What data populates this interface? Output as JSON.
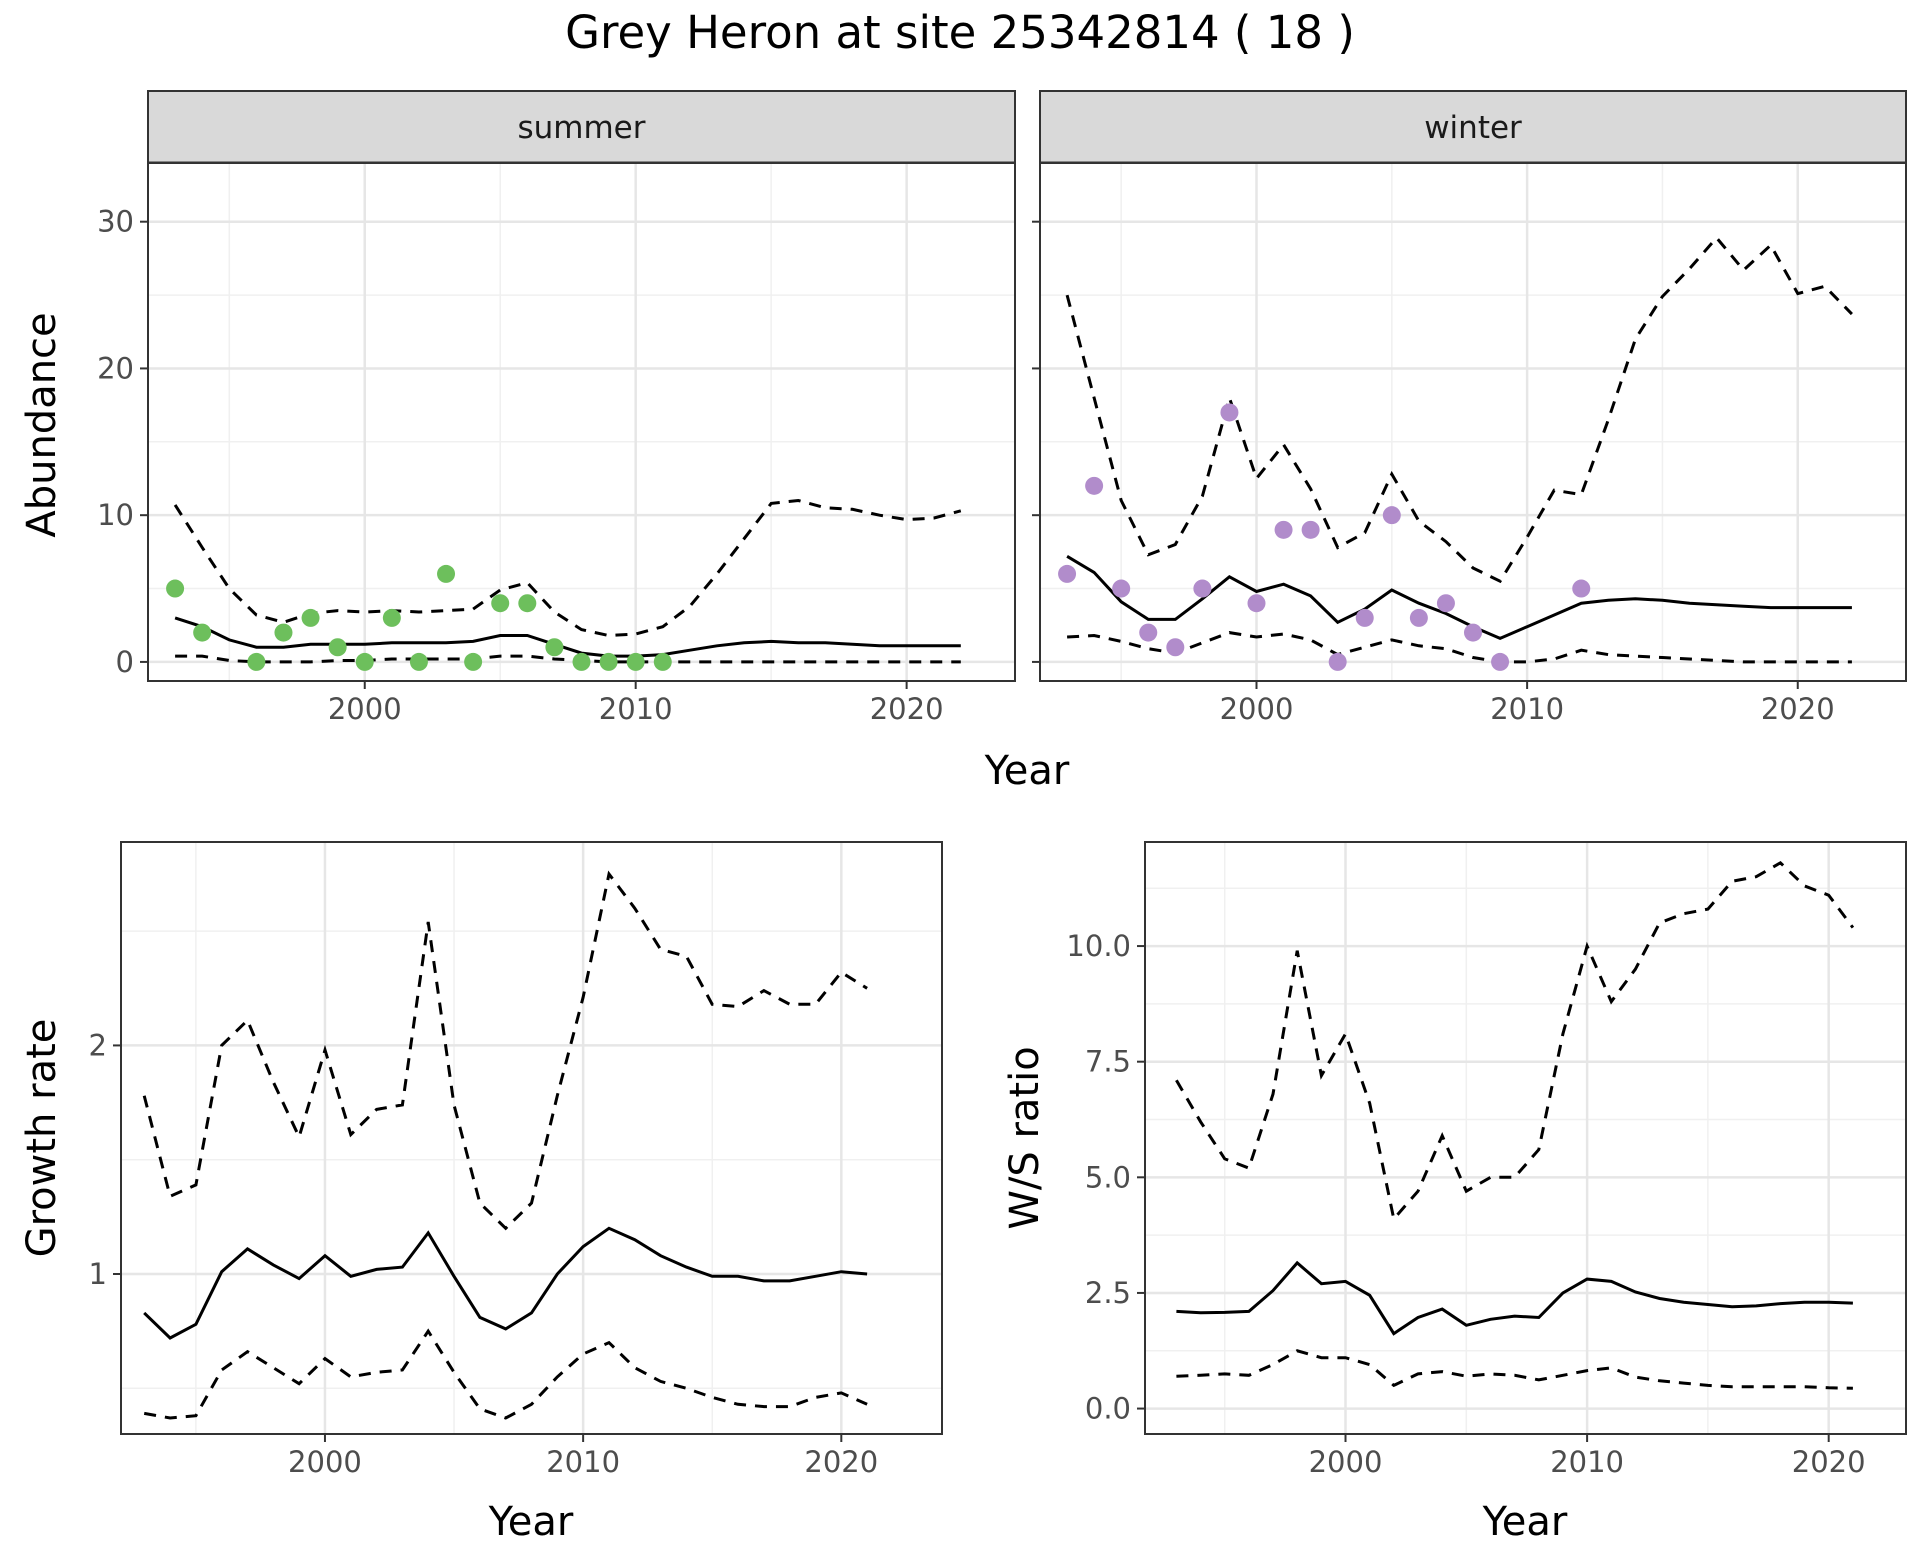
{
  "title": "Grey Heron at site 25342814 ( 18 )",
  "top": {
    "ylabel": "Abundance",
    "xlabel": "Year",
    "xlim": [
      1992,
      2024
    ],
    "ylim": [
      -1.3,
      34
    ],
    "yticks": [
      0,
      10,
      20,
      30
    ],
    "xticks": [
      2000,
      2010,
      2020
    ]
  },
  "bottom_left": {
    "ylabel": "Growth rate",
    "xlabel": "Year",
    "xlim": [
      1992.1,
      2023.9
    ],
    "ylim": [
      0.3,
      2.89
    ],
    "yticks": [
      1,
      2
    ],
    "xticks": [
      2000,
      2010,
      2020
    ]
  },
  "bottom_right": {
    "ylabel": "W/S ratio",
    "xlabel": "Year",
    "xlim": [
      1991.7,
      2023.2
    ],
    "ylim": [
      -0.55,
      12.25
    ],
    "yticks": [
      0.0,
      2.5,
      5.0,
      7.5,
      10.0
    ],
    "ytick_labels": [
      "0.0",
      "2.5",
      "5.0",
      "7.5",
      "10.0"
    ],
    "xticks": [
      2000,
      2010,
      2020
    ]
  },
  "colors": {
    "summer_points": "#6dbf5c",
    "winter_points": "#b18ccb",
    "strip_fill": "#d9d9d9",
    "line": "#000000"
  },
  "chart_data": [
    {
      "type": "line",
      "panel": "summer",
      "strip_label": "summer",
      "x": [
        1993,
        1994,
        1995,
        1996,
        1997,
        1998,
        1999,
        2000,
        2001,
        2002,
        2003,
        2004,
        2005,
        2006,
        2007,
        2008,
        2009,
        2010,
        2011,
        2012,
        2013,
        2014,
        2015,
        2016,
        2017,
        2018,
        2019,
        2020,
        2021,
        2022
      ],
      "series": [
        {
          "role": "upper",
          "style": "dashed",
          "values": [
            10.7,
            7.8,
            5.0,
            3.2,
            2.7,
            3.3,
            3.5,
            3.4,
            3.5,
            3.4,
            3.5,
            3.6,
            4.9,
            5.4,
            3.4,
            2.2,
            1.8,
            1.9,
            2.4,
            3.8,
            6.0,
            8.4,
            10.8,
            11.0,
            10.5,
            10.4,
            10.0,
            9.7,
            9.8,
            10.3
          ]
        },
        {
          "role": "estimate",
          "style": "solid",
          "values": [
            3.0,
            2.4,
            1.5,
            1.0,
            1.0,
            1.2,
            1.2,
            1.2,
            1.3,
            1.3,
            1.3,
            1.4,
            1.8,
            1.8,
            1.2,
            0.6,
            0.4,
            0.4,
            0.5,
            0.8,
            1.1,
            1.3,
            1.4,
            1.3,
            1.3,
            1.2,
            1.1,
            1.1,
            1.1,
            1.1
          ]
        },
        {
          "role": "lower",
          "style": "dashed",
          "values": [
            0.4,
            0.4,
            0.1,
            0.0,
            0.0,
            0.0,
            0.1,
            0.1,
            0.2,
            0.2,
            0.2,
            0.2,
            0.4,
            0.4,
            0.2,
            0.1,
            0.0,
            0.0,
            0.0,
            0.0,
            0.0,
            0.0,
            0.0,
            0.0,
            0.0,
            0.0,
            0.0,
            0.0,
            0.0,
            0.0
          ]
        }
      ],
      "points": {
        "x": [
          1993,
          1994,
          1996,
          1997,
          1998,
          1999,
          2000,
          2001,
          2002,
          2003,
          2004,
          2005,
          2006,
          2007,
          2008,
          2009,
          2010,
          2011
        ],
        "y": [
          5,
          2,
          0,
          2,
          3,
          1,
          0,
          3,
          0,
          6,
          0,
          4,
          4,
          1,
          0,
          0,
          0,
          0
        ]
      }
    },
    {
      "type": "line",
      "panel": "winter",
      "strip_label": "winter",
      "x": [
        1993,
        1994,
        1995,
        1996,
        1997,
        1998,
        1999,
        2000,
        2001,
        2002,
        2003,
        2004,
        2005,
        2006,
        2007,
        2008,
        2009,
        2010,
        2011,
        2012,
        2013,
        2014,
        2015,
        2016,
        2017,
        2018,
        2019,
        2020,
        2021,
        2022
      ],
      "series": [
        {
          "role": "upper",
          "style": "dashed",
          "values": [
            25.0,
            18.0,
            11.0,
            7.3,
            8.0,
            11.3,
            18.0,
            12.5,
            14.8,
            11.8,
            7.8,
            8.8,
            12.8,
            9.6,
            8.2,
            6.4,
            5.5,
            8.5,
            11.7,
            11.4,
            16.5,
            22.0,
            24.9,
            26.8,
            28.9,
            26.7,
            28.4,
            25.1,
            25.6,
            23.7
          ]
        },
        {
          "role": "estimate",
          "style": "solid",
          "values": [
            7.2,
            6.1,
            4.1,
            2.9,
            2.9,
            4.3,
            5.8,
            4.8,
            5.3,
            4.5,
            2.7,
            3.6,
            4.9,
            4.0,
            3.3,
            2.4,
            1.6,
            2.4,
            3.2,
            4.0,
            4.2,
            4.3,
            4.2,
            4.0,
            3.9,
            3.8,
            3.7,
            3.7,
            3.7,
            3.7
          ]
        },
        {
          "role": "lower",
          "style": "dashed",
          "values": [
            1.7,
            1.8,
            1.4,
            0.9,
            0.6,
            1.3,
            2.0,
            1.7,
            1.9,
            1.5,
            0.5,
            1.0,
            1.5,
            1.1,
            0.9,
            0.3,
            0.0,
            0.0,
            0.2,
            0.8,
            0.5,
            0.4,
            0.3,
            0.2,
            0.1,
            0.0,
            0.0,
            0.0,
            0.0,
            0.0
          ]
        }
      ],
      "points": {
        "x": [
          1993,
          1994,
          1995,
          1996,
          1997,
          1998,
          1999,
          2000,
          2001,
          2002,
          2003,
          2004,
          2005,
          2006,
          2007,
          2008,
          2009,
          2012
        ],
        "y": [
          6,
          12,
          5,
          2,
          1,
          5,
          17,
          4,
          9,
          9,
          0,
          3,
          10,
          3,
          4,
          2,
          0,
          5
        ]
      }
    },
    {
      "type": "line",
      "panel": "growth_rate",
      "x": [
        1993,
        1994,
        1995,
        1996,
        1997,
        1998,
        1999,
        2000,
        2001,
        2002,
        2003,
        2004,
        2005,
        2006,
        2007,
        2008,
        2009,
        2010,
        2011,
        2012,
        2013,
        2014,
        2015,
        2016,
        2017,
        2018,
        2019,
        2020,
        2021
      ],
      "series": [
        {
          "role": "upper",
          "style": "dashed",
          "values": [
            1.78,
            1.34,
            1.39,
            2.0,
            2.11,
            1.84,
            1.6,
            1.98,
            1.61,
            1.72,
            1.74,
            2.54,
            1.74,
            1.31,
            1.2,
            1.31,
            1.78,
            2.21,
            2.75,
            2.6,
            2.42,
            2.39,
            2.18,
            2.17,
            2.24,
            2.18,
            2.18,
            2.32,
            2.25
          ]
        },
        {
          "role": "estimate",
          "style": "solid",
          "values": [
            0.83,
            0.72,
            0.78,
            1.01,
            1.11,
            1.04,
            0.98,
            1.08,
            0.99,
            1.02,
            1.03,
            1.18,
            0.99,
            0.81,
            0.76,
            0.83,
            1.0,
            1.12,
            1.2,
            1.15,
            1.08,
            1.03,
            0.99,
            0.99,
            0.97,
            0.97,
            0.99,
            1.01,
            1.0
          ]
        },
        {
          "role": "lower",
          "style": "dashed",
          "values": [
            0.39,
            0.37,
            0.38,
            0.58,
            0.66,
            0.59,
            0.52,
            0.63,
            0.55,
            0.57,
            0.58,
            0.75,
            0.57,
            0.41,
            0.37,
            0.43,
            0.55,
            0.65,
            0.7,
            0.59,
            0.53,
            0.5,
            0.46,
            0.43,
            0.42,
            0.42,
            0.46,
            0.48,
            0.43
          ]
        }
      ]
    },
    {
      "type": "line",
      "panel": "ws_ratio",
      "x": [
        1993,
        1994,
        1995,
        1996,
        1997,
        1998,
        1999,
        2000,
        2001,
        2002,
        2003,
        2004,
        2005,
        2006,
        2007,
        2008,
        2009,
        2010,
        2011,
        2012,
        2013,
        2014,
        2015,
        2016,
        2017,
        2018,
        2019,
        2020,
        2021
      ],
      "series": [
        {
          "role": "upper",
          "style": "dashed",
          "values": [
            7.1,
            6.2,
            5.4,
            5.2,
            6.8,
            9.9,
            7.2,
            8.1,
            6.6,
            4.1,
            4.7,
            5.9,
            4.7,
            5.0,
            5.0,
            5.6,
            8.1,
            10.0,
            8.8,
            9.5,
            10.5,
            10.7,
            10.8,
            11.4,
            11.5,
            11.8,
            11.3,
            11.1,
            10.4
          ]
        },
        {
          "role": "estimate",
          "style": "solid",
          "values": [
            2.1,
            2.07,
            2.08,
            2.1,
            2.55,
            3.15,
            2.7,
            2.75,
            2.45,
            1.62,
            1.97,
            2.15,
            1.8,
            1.93,
            2.0,
            1.97,
            2.5,
            2.8,
            2.75,
            2.52,
            2.38,
            2.3,
            2.25,
            2.2,
            2.22,
            2.27,
            2.3,
            2.3,
            2.28
          ]
        },
        {
          "role": "lower",
          "style": "dashed",
          "values": [
            0.7,
            0.72,
            0.75,
            0.72,
            0.95,
            1.25,
            1.1,
            1.1,
            0.95,
            0.5,
            0.75,
            0.8,
            0.7,
            0.75,
            0.72,
            0.62,
            0.72,
            0.82,
            0.88,
            0.68,
            0.6,
            0.55,
            0.5,
            0.47,
            0.47,
            0.47,
            0.47,
            0.45,
            0.44
          ]
        }
      ]
    }
  ]
}
